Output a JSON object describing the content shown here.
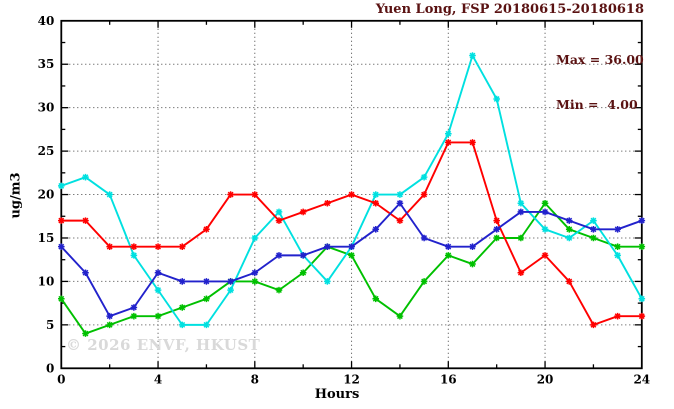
{
  "title": "Yuen Long, FSP 20180615-20180618",
  "legend": {
    "max_label": "Max = 36.00",
    "min_label": "Min =  4.00"
  },
  "watermark": "© 2026 ENVF, HKUST",
  "colors": {
    "red": "#ff0000",
    "green": "#00c000",
    "blue": "#2222cc",
    "cyan": "#00e0e0",
    "title_text": "#5a1212",
    "watermark_text": "#d9d9d9",
    "grid": "#444444",
    "frame": "#000000"
  },
  "chart_data": {
    "type": "line",
    "title": "Yuen Long, FSP 20180615-20180618",
    "xlabel": "Hours",
    "ylabel": "ug/m3",
    "xlim": [
      0,
      24
    ],
    "ylim": [
      0,
      40
    ],
    "x_major_ticks": [
      0,
      4,
      8,
      12,
      16,
      20,
      24
    ],
    "x_minor_ticks": [
      2,
      6,
      10,
      14,
      18,
      22
    ],
    "y_major_ticks": [
      0,
      5,
      10,
      15,
      20,
      25,
      30,
      35,
      40
    ],
    "y_minor_ticks": [
      2.5,
      7.5,
      12.5,
      17.5,
      22.5,
      27.5,
      32.5,
      37.5
    ],
    "grid_x": [
      4,
      8,
      12,
      16,
      20
    ],
    "grid_y": [
      5,
      10,
      15,
      20,
      25,
      30,
      35
    ],
    "legend_position": "top-right",
    "stats": {
      "max": 36.0,
      "min": 4.0
    },
    "x": [
      0,
      1,
      2,
      3,
      4,
      5,
      6,
      7,
      8,
      9,
      10,
      11,
      12,
      13,
      14,
      15,
      16,
      17,
      18,
      19,
      20,
      21,
      22,
      23,
      24
    ],
    "series": [
      {
        "name": "series-green",
        "color_key": "green",
        "values": [
          8,
          4,
          5,
          6,
          6,
          7,
          8,
          10,
          10,
          9,
          11,
          14,
          13,
          8,
          6,
          10,
          13,
          12,
          15,
          15,
          19,
          16,
          15,
          14,
          14
        ]
      },
      {
        "name": "series-cyan",
        "color_key": "cyan",
        "values": [
          21,
          22,
          20,
          13,
          9,
          5,
          5,
          9,
          15,
          18,
          13,
          10,
          14,
          20,
          20,
          22,
          27,
          36,
          31,
          19,
          16,
          15,
          17,
          13,
          8
        ]
      },
      {
        "name": "series-red",
        "color_key": "red",
        "values": [
          17,
          17,
          14,
          14,
          14,
          14,
          16,
          20,
          20,
          17,
          18,
          19,
          20,
          19,
          17,
          20,
          26,
          26,
          17,
          11,
          13,
          10,
          5,
          6,
          6
        ]
      },
      {
        "name": "series-blue",
        "color_key": "blue",
        "values": [
          14,
          11,
          6,
          7,
          11,
          10,
          10,
          10,
          11,
          13,
          13,
          14,
          14,
          16,
          19,
          15,
          14,
          14,
          16,
          18,
          18,
          17,
          16,
          16,
          17
        ]
      }
    ]
  }
}
